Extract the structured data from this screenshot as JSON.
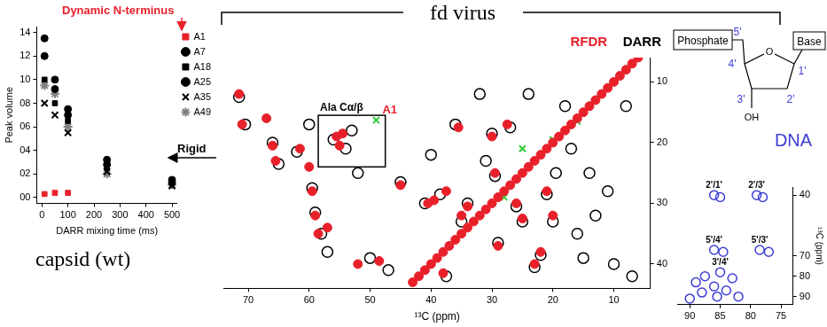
{
  "chart_data": [
    {
      "type": "scatter",
      "x_label": "DARR mixing time (ms)",
      "y_label": "Peak volume",
      "x": [
        10,
        50,
        100,
        250,
        500
      ],
      "xlim": [
        -20,
        520
      ],
      "xticks": [
        0,
        100,
        200,
        300,
        400,
        500
      ],
      "ylim": [
        -0.5,
        14.5
      ],
      "yticks": [
        {
          "value": 0,
          "label": "00"
        },
        {
          "value": 2,
          "label": "02"
        },
        {
          "value": 4,
          "label": "04"
        },
        {
          "value": 6,
          "label": "06"
        },
        {
          "value": 8,
          "label": "08"
        },
        10,
        12,
        14
      ],
      "grid": false,
      "legend": "right",
      "series": [
        {
          "name": "A1",
          "color": "#e8202a",
          "marker": "square",
          "values": [
            0.3,
            0.4,
            0.4,
            null,
            null
          ]
        },
        {
          "name": "A7",
          "color": "#000000",
          "marker": "circle",
          "values": [
            13.5,
            10,
            7.5,
            3.2,
            1.5
          ]
        },
        {
          "name": "A18",
          "color": "#000000",
          "marker": "square",
          "values": [
            10,
            8,
            6.5,
            2.5,
            1.2
          ]
        },
        {
          "name": "A25",
          "color": "#000000",
          "marker": "circle",
          "values": [
            12,
            9.2,
            7,
            2.8,
            1.3
          ]
        },
        {
          "name": "A35",
          "color": "#000000",
          "marker": "bowtie",
          "values": [
            8,
            7,
            5.5,
            2.2,
            1.0
          ]
        },
        {
          "name": "A49",
          "color": "#808080",
          "marker": "star",
          "values": [
            9.5,
            8.8,
            6,
            2,
            1.1
          ]
        }
      ]
    },
    {
      "type": "scatter",
      "x_label": "¹³C (ppm)",
      "xlim": [
        74,
        4
      ],
      "xticks": [
        70,
        60,
        50,
        40,
        30,
        20,
        10
      ],
      "ylim": [
        44,
        6
      ],
      "yticks": [
        10,
        20,
        30,
        40
      ],
      "grid": false,
      "legend": "top",
      "series": [
        {
          "name": "RFDR",
          "color": "#e8202a",
          "marker": "circle",
          "points": [
            [
              71.5,
              12
            ],
            [
              71,
              17
            ],
            [
              67,
              16
            ],
            [
              66,
              20.5
            ],
            [
              65.5,
              23
            ],
            [
              61.5,
              21
            ],
            [
              60,
              24
            ],
            [
              59.5,
              28
            ],
            [
              59,
              32
            ],
            [
              58.5,
              35
            ],
            [
              57,
              34
            ],
            [
              55.5,
              19
            ],
            [
              55,
              20.5
            ],
            [
              54.5,
              18.5
            ],
            [
              52,
              40
            ],
            [
              48.5,
              39.5
            ],
            [
              45,
              27
            ],
            [
              40.5,
              30
            ],
            [
              39.5,
              29.5
            ],
            [
              38,
              41.5
            ],
            [
              37.5,
              28
            ],
            [
              35.5,
              17.5
            ],
            [
              35,
              32
            ],
            [
              34,
              30.5
            ],
            [
              30,
              19
            ],
            [
              29.5,
              25
            ],
            [
              29,
              37
            ],
            [
              27.5,
              17
            ],
            [
              26,
              30
            ],
            [
              25,
              32.5
            ],
            [
              23,
              40
            ],
            [
              22,
              38
            ],
            [
              21,
              28
            ],
            [
              20,
              32
            ],
            [
              43,
              43
            ],
            [
              42,
              42
            ],
            [
              41,
              41
            ],
            [
              40,
              40
            ],
            [
              39,
              39
            ],
            [
              38,
              38
            ],
            [
              37,
              37
            ],
            [
              36,
              36
            ],
            [
              35,
              35
            ],
            [
              34,
              34
            ],
            [
              33,
              33
            ],
            [
              32,
              32
            ],
            [
              31,
              31
            ],
            [
              30,
              30
            ],
            [
              29,
              29
            ],
            [
              28,
              28
            ],
            [
              27,
              27
            ],
            [
              26,
              26
            ],
            [
              25,
              25
            ],
            [
              24,
              24
            ],
            [
              23,
              23
            ],
            [
              22,
              22
            ],
            [
              21,
              21
            ],
            [
              20,
              20
            ],
            [
              19,
              19
            ],
            [
              18,
              18
            ],
            [
              17,
              17
            ],
            [
              16,
              16
            ],
            [
              15,
              15
            ],
            [
              14,
              14
            ],
            [
              13,
              13
            ],
            [
              12,
              12
            ],
            [
              11,
              11
            ],
            [
              10,
              10
            ],
            [
              9,
              9
            ],
            [
              8,
              8
            ],
            [
              7,
              7
            ],
            [
              6,
              6
            ]
          ]
        },
        {
          "name": "DARR",
          "color": "#000000",
          "marker": "ring",
          "points": [
            [
              71.5,
              12.5
            ],
            [
              70.5,
              17
            ],
            [
              66,
              20
            ],
            [
              65,
              23.5
            ],
            [
              62,
              21.5
            ],
            [
              60,
              17
            ],
            [
              59.5,
              27.5
            ],
            [
              59,
              31.5
            ],
            [
              58,
              35
            ],
            [
              57,
              38
            ],
            [
              56,
              19.5
            ],
            [
              54,
              21
            ],
            [
              53,
              18
            ],
            [
              52,
              25
            ],
            [
              50,
              39
            ],
            [
              47,
              41
            ],
            [
              45,
              26.5
            ],
            [
              41,
              30
            ],
            [
              40,
              22
            ],
            [
              38.5,
              28.5
            ],
            [
              37.5,
              42
            ],
            [
              36,
              17
            ],
            [
              35,
              33
            ],
            [
              34,
              30
            ],
            [
              32,
              12
            ],
            [
              31,
              23
            ],
            [
              30,
              18.5
            ],
            [
              29.5,
              25.5
            ],
            [
              29,
              36.5
            ],
            [
              27,
              17.5
            ],
            [
              26,
              30.5
            ],
            [
              25,
              33
            ],
            [
              24,
              12
            ],
            [
              23,
              40.5
            ],
            [
              22,
              38.5
            ],
            [
              21,
              28.5
            ],
            [
              20,
              33
            ],
            [
              19.5,
              25
            ],
            [
              18,
              14
            ],
            [
              17,
              21
            ],
            [
              16,
              35
            ],
            [
              15,
              39
            ],
            [
              14,
              25
            ],
            [
              13,
              32
            ],
            [
              11,
              28
            ],
            [
              10,
              40
            ],
            [
              8,
              14
            ],
            [
              7,
              42
            ]
          ]
        },
        {
          "color": "#33cc33",
          "marker": "x",
          "points": [
            [
              49,
              16.3
            ],
            [
              25,
              21
            ],
            [
              20,
              19.5
            ],
            [
              16,
              16.5
            ],
            [
              28,
              29
            ]
          ]
        }
      ],
      "region": {
        "label": "Ala Cα/β",
        "xlim": [
          58.5,
          47.5
        ],
        "ylim": [
          24,
          15.5
        ]
      },
      "annotations": [
        {
          "text": "A1",
          "x": 49,
          "y": 16.3,
          "color": "#e8202a"
        }
      ]
    },
    {
      "type": "scatter",
      "y_label": "¹³C (ppm)",
      "xlim": [
        92,
        73
      ],
      "xticks": [
        90,
        85,
        80,
        75
      ],
      "ylim": [
        94,
        36
      ],
      "yticks": [
        40,
        70,
        80,
        90
      ],
      "grid": false,
      "series": [
        {
          "color": "#3d3dd6",
          "marker": "ring",
          "points": [
            [
              86,
              40
            ],
            [
              85,
              41
            ],
            [
              79,
              40
            ],
            [
              78,
              41
            ],
            [
              86,
              67
            ],
            [
              84.5,
              68
            ],
            [
              78.5,
              67
            ],
            [
              77,
              68
            ],
            [
              85,
              78
            ],
            [
              87.5,
              80
            ],
            [
              83,
              81
            ],
            [
              89,
              83
            ],
            [
              86,
              85
            ],
            [
              84,
              87
            ],
            [
              88,
              88
            ],
            [
              85.5,
              90
            ],
            [
              82,
              90
            ],
            [
              90,
              91
            ]
          ]
        }
      ],
      "peak_labels": [
        {
          "text": "2'/1'",
          "x": 86,
          "y": 40
        },
        {
          "text": "2'/3'",
          "x": 79,
          "y": 40
        },
        {
          "text": "5'/4'",
          "x": 86,
          "y": 67
        },
        {
          "text": "5'/3'",
          "x": 78.5,
          "y": 67
        },
        {
          "text": "3'/4'",
          "x": 85,
          "y": 78
        }
      ]
    }
  ],
  "header": {
    "title": "fd virus"
  },
  "panel_label": "capsid (wt)",
  "annotations": [
    {
      "text": "Dynamic N-terminus",
      "color": "#e8202a"
    },
    {
      "text": "Rigid",
      "color": "#000000"
    }
  ],
  "dna_diagram": {
    "title": "DNA",
    "phosphate": "Phosphate",
    "base": "Base",
    "ring_atoms": [
      "5'",
      "4'",
      "3'",
      "2'",
      "1'"
    ],
    "ring_oxygen": "O",
    "hydroxyl": "OH"
  }
}
